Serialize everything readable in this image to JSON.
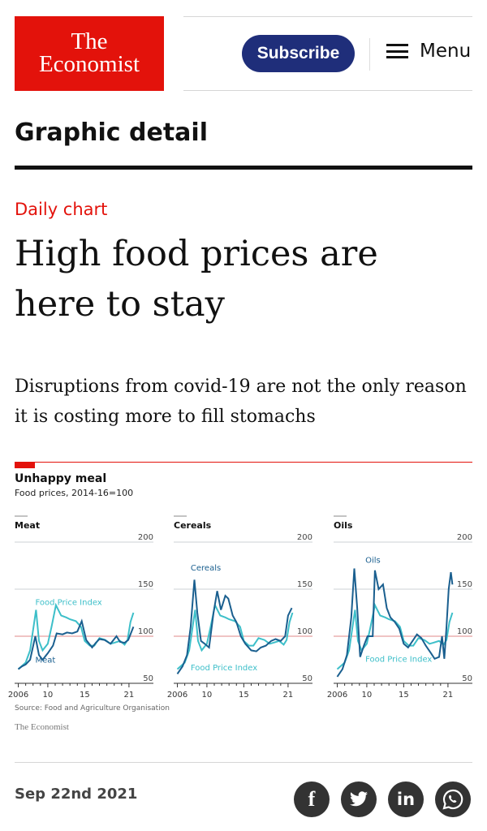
{
  "header": {
    "logo_line1": "The",
    "logo_line2": "Economist",
    "subscribe": "Subscribe",
    "menu": "Menu"
  },
  "section": "Graphic detail",
  "article": {
    "kicker": "Daily chart",
    "headline": "High food prices are here to stay",
    "standfirst": "Disruptions from covid-19 are not the only reason it is costing more to fill stomachs",
    "date": "Sep 22nd 2021"
  },
  "share": [
    {
      "icon": "facebook-icon",
      "label": "f"
    },
    {
      "icon": "twitter-icon",
      "label": "t"
    },
    {
      "icon": "linkedin-icon",
      "label": "in"
    },
    {
      "icon": "whatsapp-icon",
      "label": "w"
    }
  ],
  "colors": {
    "brand_red": "#e3120b",
    "subscribe_blue": "#1f2e7a",
    "series_dark": "#1a5f8f",
    "series_light": "#3dbfc9",
    "ref_line": "#e8a0a0"
  },
  "chart_data": {
    "type": "line",
    "title": "Unhappy meal",
    "subtitle": "Food prices, 2014-16=100",
    "source": "Source: Food and Agriculture Organisation",
    "brand": "The Economist",
    "ylim": [
      50,
      200
    ],
    "yticks": [
      "200",
      "150",
      "100",
      "50"
    ],
    "ytick_values": [
      200,
      150,
      100,
      50
    ],
    "xticks": [
      "2006",
      "10",
      "15",
      "21"
    ],
    "xtick_values": [
      2006,
      2010,
      2015,
      2021
    ],
    "xlim": [
      2005.5,
      2022
    ],
    "reference_value": 100,
    "food_price_index": {
      "name": "Food Price Index",
      "x": [
        2006,
        2007,
        2007.6,
        2008.4,
        2008.8,
        2009.3,
        2010,
        2010.5,
        2011.1,
        2011.8,
        2012.5,
        2013,
        2013.8,
        2014.5,
        2015,
        2015.7,
        2016.3,
        2017,
        2017.8,
        2018.5,
        2019,
        2019.8,
        2020.4,
        2020.8,
        2021.2,
        2021.6
      ],
      "values": [
        65,
        72,
        85,
        128,
        95,
        85,
        92,
        110,
        133,
        122,
        120,
        118,
        116,
        110,
        95,
        90,
        90,
        98,
        96,
        92,
        93,
        95,
        91,
        96,
        115,
        125
      ]
    },
    "panels": [
      {
        "name": "Meat",
        "series_label": "Meat",
        "fpi_label": "Food Price Index",
        "x": [
          2006,
          2006.5,
          2007,
          2007.6,
          2008.3,
          2008.8,
          2009.3,
          2010,
          2010.7,
          2011.2,
          2012,
          2012.6,
          2013.3,
          2014,
          2014.6,
          2015.2,
          2016,
          2016.5,
          2017,
          2017.7,
          2018.5,
          2019.3,
          2019.8,
          2020.4,
          2020.9,
          2021.6
        ],
        "values": [
          65,
          68,
          70,
          75,
          100,
          80,
          75,
          82,
          90,
          103,
          102,
          104,
          103,
          105,
          116,
          96,
          88,
          93,
          97,
          96,
          92,
          100,
          94,
          93,
          96,
          110
        ]
      },
      {
        "name": "Cereals",
        "series_label": "Cereals",
        "fpi_label": "Food Price Index",
        "x": [
          2006,
          2006.7,
          2007.3,
          2007.8,
          2008.3,
          2008.7,
          2009.2,
          2009.7,
          2010.3,
          2010.9,
          2011.4,
          2011.9,
          2012.5,
          2012.9,
          2013.5,
          2014,
          2014.6,
          2015.2,
          2016,
          2016.7,
          2017.3,
          2018,
          2018.7,
          2019.3,
          2020,
          2020.6,
          2021,
          2021.5
        ],
        "values": [
          60,
          68,
          80,
          110,
          160,
          125,
          95,
          92,
          88,
          125,
          148,
          128,
          143,
          140,
          122,
          115,
          100,
          92,
          85,
          84,
          88,
          90,
          95,
          97,
          95,
          100,
          122,
          130
        ]
      },
      {
        "name": "Oils",
        "series_label": "Oils",
        "fpi_label": "Food Price Index",
        "x": [
          2006,
          2006.7,
          2007.3,
          2007.9,
          2008.3,
          2008.7,
          2009.1,
          2009.6,
          2010.1,
          2010.8,
          2011.1,
          2011.6,
          2012.2,
          2012.7,
          2013.2,
          2013.8,
          2014.4,
          2015,
          2015.6,
          2016.2,
          2016.8,
          2017.4,
          2018,
          2018.7,
          2019.2,
          2019.8,
          2020.2,
          2020.5,
          2020.8,
          2021.1,
          2021.4,
          2021.6
        ],
        "values": [
          57,
          65,
          80,
          120,
          172,
          130,
          78,
          90,
          100,
          100,
          170,
          150,
          155,
          130,
          120,
          115,
          108,
          92,
          88,
          95,
          102,
          98,
          90,
          82,
          76,
          78,
          100,
          76,
          110,
          150,
          168,
          155
        ]
      }
    ]
  }
}
